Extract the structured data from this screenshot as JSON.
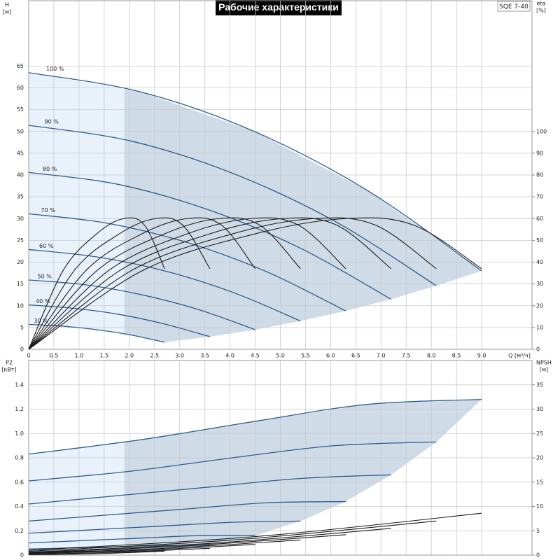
{
  "chart_data": [
    {
      "type": "line",
      "title": "Рабочие характеристики",
      "model": "SQE 7-40",
      "ylabel": "H",
      "yunit": "[м]",
      "y2label": "eta",
      "y2unit": "[%]",
      "xlabel": "Q [м³/ч]",
      "xlim": [
        0,
        10
      ],
      "xticks": [
        0,
        0.5,
        {
          "value": 1,
          "label": "1.0"
        },
        1.5,
        {
          "value": 2,
          "label": "2.0"
        },
        2.5,
        {
          "value": 3,
          "label": "3.0"
        },
        3.5,
        {
          "value": 4,
          "label": "4.0"
        },
        4.5,
        {
          "value": 5,
          "label": "5.0"
        },
        5.5,
        {
          "value": 6,
          "label": "6.0"
        },
        6.5,
        {
          "value": 7,
          "label": "7.0"
        },
        7.5,
        {
          "value": 8,
          "label": "8.0"
        },
        8.5,
        {
          "value": 9,
          "label": "9.0"
        }
      ],
      "ylim": [
        0,
        80
      ],
      "yticks": [
        0,
        5,
        10,
        15,
        20,
        25,
        30,
        35,
        40,
        45,
        50,
        55,
        60,
        65
      ],
      "y2lim": [
        0,
        160
      ],
      "y2ticks": [
        0,
        10,
        20,
        30,
        40,
        50,
        60,
        70,
        80,
        90,
        100
      ],
      "grid": true,
      "min_flow": 1.9,
      "shade_color": "#cfdbe7",
      "shade_light_color": "#e9f2fb",
      "series": [
        {
          "name": "100 %",
          "color": "#2c5d8f",
          "x": [
            0,
            2.25,
            4.5,
            6.75,
            9.0
          ],
          "values": [
            63.5,
            59.0,
            49.9,
            36.3,
            18.0
          ]
        },
        {
          "name": "90 %",
          "color": "#2c5d8f",
          "x": [
            0,
            2.03,
            4.05,
            6.08,
            8.1
          ],
          "values": [
            51.4,
            47.8,
            40.4,
            29.4,
            14.6
          ]
        },
        {
          "name": "80 %",
          "color": "#2c5d8f",
          "x": [
            0,
            1.8,
            3.6,
            5.4,
            7.2
          ],
          "values": [
            40.6,
            37.8,
            31.9,
            23.2,
            11.5
          ]
        },
        {
          "name": "70 %",
          "color": "#2c5d8f",
          "x": [
            0,
            1.58,
            3.15,
            4.73,
            6.3
          ],
          "values": [
            31.1,
            28.9,
            24.5,
            17.8,
            8.8
          ]
        },
        {
          "name": "60 %",
          "color": "#2c5d8f",
          "x": [
            0,
            1.35,
            2.7,
            4.05,
            5.4
          ],
          "values": [
            22.9,
            21.2,
            18.0,
            13.1,
            6.5
          ]
        },
        {
          "name": "50 %",
          "color": "#2c5d8f",
          "x": [
            0,
            1.13,
            2.25,
            3.38,
            4.5
          ],
          "values": [
            15.9,
            14.8,
            12.5,
            9.1,
            4.5
          ]
        },
        {
          "name": "40 %",
          "color": "#2c5d8f",
          "x": [
            0,
            0.9,
            1.8,
            2.7,
            3.6
          ],
          "values": [
            10.2,
            9.4,
            8.0,
            5.8,
            2.9
          ]
        },
        {
          "name": "30 %",
          "color": "#2c5d8f",
          "x": [
            0,
            0.68,
            1.35,
            2.03,
            2.7
          ],
          "values": [
            5.7,
            5.3,
            4.5,
            3.3,
            1.6
          ]
        },
        {
          "color": "#1a1a1a",
          "axis": "y2",
          "x": [
            0,
            2.25,
            4.5,
            6.3,
            7.65,
            9.0
          ],
          "values": [
            0,
            36,
            53,
            60,
            57,
            37
          ]
        },
        {
          "color": "#1a1a1a",
          "axis": "y2",
          "x": [
            0,
            2.03,
            4.05,
            5.67,
            6.89,
            8.1
          ],
          "values": [
            0,
            36,
            53,
            60,
            57,
            37
          ]
        },
        {
          "color": "#1a1a1a",
          "axis": "y2",
          "x": [
            0,
            1.8,
            3.6,
            5.04,
            6.12,
            7.2
          ],
          "values": [
            0,
            36,
            53,
            60,
            57,
            37
          ]
        },
        {
          "color": "#1a1a1a",
          "axis": "y2",
          "x": [
            0,
            1.58,
            3.15,
            4.41,
            5.36,
            6.3
          ],
          "values": [
            0,
            36,
            53,
            60,
            57,
            37
          ]
        },
        {
          "color": "#1a1a1a",
          "axis": "y2",
          "x": [
            0,
            1.35,
            2.7,
            3.78,
            4.59,
            5.4
          ],
          "values": [
            0,
            36,
            53,
            60,
            57,
            37
          ]
        },
        {
          "color": "#1a1a1a",
          "axis": "y2",
          "x": [
            0,
            1.13,
            2.25,
            3.15,
            3.83,
            4.5
          ],
          "values": [
            0,
            36,
            53,
            60,
            57,
            37
          ]
        },
        {
          "color": "#1a1a1a",
          "axis": "y2",
          "x": [
            0,
            0.9,
            1.8,
            2.52,
            3.06,
            3.6
          ],
          "values": [
            0,
            36,
            53,
            60,
            57,
            37
          ]
        },
        {
          "color": "#1a1a1a",
          "axis": "y2",
          "x": [
            0,
            0.68,
            1.35,
            1.89,
            2.3,
            2.7
          ],
          "values": [
            0,
            36,
            53,
            60,
            57,
            37
          ]
        }
      ]
    },
    {
      "type": "line",
      "ylabel": "P2",
      "yunit": "[кВт]",
      "y2label": "NPSH",
      "y2unit": "[м]",
      "ylim": [
        0,
        1.6
      ],
      "yticks": [
        0,
        0.2,
        0.4,
        0.6,
        0.8,
        {
          "value": 1,
          "label": "1.0"
        },
        1.2,
        1.4
      ],
      "y2lim": [
        0,
        40
      ],
      "y2ticks": [
        0,
        5,
        10,
        15,
        20,
        25,
        30,
        35
      ],
      "grid": true,
      "min_flow": 1.9,
      "shade_color": "#cfdbe7",
      "shade_light_color": "#e9f2fb",
      "series": [
        {
          "color": "#2c5d8f",
          "x": [
            0,
            2.25,
            4.5,
            6.75,
            9.0
          ],
          "values": [
            0.83,
            0.95,
            1.1,
            1.24,
            1.28
          ]
        },
        {
          "color": "#2c5d8f",
          "x": [
            0,
            2.03,
            4.05,
            6.08,
            8.1
          ],
          "values": [
            0.61,
            0.69,
            0.8,
            0.9,
            0.93
          ]
        },
        {
          "color": "#2c5d8f",
          "x": [
            0,
            1.8,
            3.6,
            5.4,
            7.2
          ],
          "values": [
            0.42,
            0.49,
            0.56,
            0.63,
            0.66
          ]
        },
        {
          "color": "#2c5d8f",
          "x": [
            0,
            1.58,
            3.15,
            4.73,
            6.3
          ],
          "values": [
            0.28,
            0.33,
            0.38,
            0.43,
            0.44
          ]
        },
        {
          "color": "#2c5d8f",
          "x": [
            0,
            1.35,
            2.7,
            4.05,
            5.4
          ],
          "values": [
            0.18,
            0.21,
            0.24,
            0.27,
            0.28
          ]
        },
        {
          "color": "#2c5d8f",
          "x": [
            0,
            1.13,
            2.25,
            3.38,
            4.5
          ],
          "values": [
            0.1,
            0.12,
            0.14,
            0.16,
            0.16
          ]
        },
        {
          "color": "#2c5d8f",
          "x": [
            0,
            0.9,
            1.8,
            2.7,
            3.6
          ],
          "values": [
            0.05,
            0.06,
            0.07,
            0.08,
            0.08
          ]
        },
        {
          "color": "#2c5d8f",
          "x": [
            0,
            0.68,
            1.35,
            2.03,
            2.7
          ],
          "values": [
            0.02,
            0.03,
            0.03,
            0.03,
            0.04
          ]
        },
        {
          "color": "#1a1a1a",
          "axis": "y2",
          "x": [
            0,
            4.5,
            9.0
          ],
          "values": [
            1.0,
            3.8,
            8.6
          ]
        },
        {
          "color": "#1a1a1a",
          "axis": "y2",
          "x": [
            0,
            4.05,
            8.1
          ],
          "values": [
            0.8,
            3.1,
            7.0
          ]
        },
        {
          "color": "#1a1a1a",
          "axis": "y2",
          "x": [
            0,
            3.6,
            7.2
          ],
          "values": [
            0.6,
            2.4,
            5.5
          ]
        },
        {
          "color": "#1a1a1a",
          "axis": "y2",
          "x": [
            0,
            3.15,
            6.3
          ],
          "values": [
            0.5,
            1.9,
            4.2
          ]
        },
        {
          "color": "#1a1a1a",
          "axis": "y2",
          "x": [
            0,
            2.7,
            5.4
          ],
          "values": [
            0.4,
            1.4,
            3.1
          ]
        },
        {
          "color": "#1a1a1a",
          "axis": "y2",
          "x": [
            0,
            2.25,
            4.5
          ],
          "values": [
            0.3,
            1.0,
            2.2
          ]
        },
        {
          "color": "#1a1a1a",
          "axis": "y2",
          "x": [
            0,
            1.8,
            3.6
          ],
          "values": [
            0.2,
            0.6,
            1.4
          ]
        },
        {
          "color": "#1a1a1a",
          "axis": "y2",
          "x": [
            0,
            1.35,
            2.7
          ],
          "values": [
            0.1,
            0.3,
            0.8
          ]
        }
      ]
    }
  ]
}
